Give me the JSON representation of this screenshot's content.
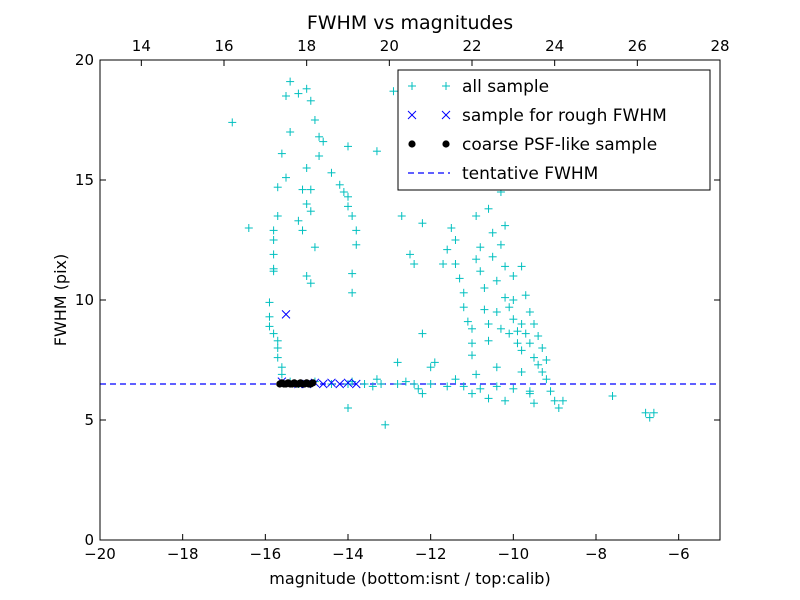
{
  "chart_data": {
    "type": "scatter",
    "title": "FWHM vs magnitudes",
    "xlabel": "magnitude (bottom:isnt / top:calib)",
    "ylabel": "FWHM (pix)",
    "xlim": [
      -20,
      -5
    ],
    "ylim": [
      0,
      20
    ],
    "x_ticks": [
      -20,
      -18,
      -16,
      -14,
      -12,
      -10,
      -8,
      -6
    ],
    "x_tick_labels": [
      "−20",
      "−18",
      "−16",
      "−14",
      "−12",
      "−10",
      "−8",
      "−6"
    ],
    "y_ticks": [
      0,
      5,
      10,
      15,
      20
    ],
    "y_tick_labels": [
      "0",
      "5",
      "10",
      "15",
      "20"
    ],
    "top_axis": {
      "xlim": [
        13,
        28
      ],
      "ticks": [
        14,
        16,
        18,
        20,
        22,
        24,
        26,
        28
      ],
      "tick_labels": [
        "14",
        "16",
        "18",
        "20",
        "22",
        "24",
        "26",
        "28"
      ]
    },
    "grid": false,
    "legend_position": "top-right",
    "legend": [
      {
        "label": "all sample",
        "marker": "plus",
        "color": "#00BFBF"
      },
      {
        "label": "sample for rough FWHM",
        "marker": "x",
        "color": "#0000FF"
      },
      {
        "label": "coarse PSF-like sample",
        "marker": "dot",
        "color": "#000000"
      },
      {
        "label": "tentative FWHM",
        "marker": "dashed-line",
        "color": "#0000FF"
      }
    ],
    "series": [
      {
        "name": "all sample",
        "marker": "plus",
        "color": "#00BFBF",
        "points": [
          [
            -16.8,
            17.4
          ],
          [
            -16.4,
            13.0
          ],
          [
            -15.4,
            19.1
          ],
          [
            -15.5,
            18.5
          ],
          [
            -15.2,
            18.6
          ],
          [
            -15.0,
            18.8
          ],
          [
            -14.9,
            18.3
          ],
          [
            -14.8,
            17.5
          ],
          [
            -14.7,
            16.8
          ],
          [
            -15.4,
            17.0
          ],
          [
            -15.6,
            16.1
          ],
          [
            -15.5,
            15.1
          ],
          [
            -15.7,
            14.7
          ],
          [
            -15.7,
            13.5
          ],
          [
            -15.8,
            12.9
          ],
          [
            -15.8,
            12.5
          ],
          [
            -15.8,
            11.9
          ],
          [
            -15.8,
            11.3
          ],
          [
            -15.8,
            11.2
          ],
          [
            -15.9,
            9.9
          ],
          [
            -15.9,
            9.3
          ],
          [
            -15.9,
            8.9
          ],
          [
            -15.8,
            8.6
          ],
          [
            -15.7,
            8.3
          ],
          [
            -15.7,
            8.0
          ],
          [
            -15.7,
            7.6
          ],
          [
            -15.6,
            7.2
          ],
          [
            -15.6,
            6.9
          ],
          [
            -15.0,
            15.5
          ],
          [
            -15.1,
            14.6
          ],
          [
            -14.9,
            14.6
          ],
          [
            -15.0,
            14.0
          ],
          [
            -14.9,
            13.7
          ],
          [
            -15.2,
            13.3
          ],
          [
            -15.1,
            12.9
          ],
          [
            -14.8,
            12.2
          ],
          [
            -15.0,
            11.0
          ],
          [
            -14.9,
            10.7
          ],
          [
            -14.7,
            16.0
          ],
          [
            -14.6,
            16.6
          ],
          [
            -14.4,
            15.3
          ],
          [
            -14.2,
            14.8
          ],
          [
            -14.0,
            16.4
          ],
          [
            -14.1,
            14.5
          ],
          [
            -14.0,
            14.3
          ],
          [
            -14.0,
            13.9
          ],
          [
            -13.9,
            13.5
          ],
          [
            -13.8,
            12.9
          ],
          [
            -13.8,
            12.3
          ],
          [
            -13.9,
            11.1
          ],
          [
            -13.9,
            10.3
          ],
          [
            -13.3,
            16.2
          ],
          [
            -12.9,
            18.7
          ],
          [
            -12.7,
            13.5
          ],
          [
            -12.5,
            11.9
          ],
          [
            -12.4,
            11.5
          ],
          [
            -12.2,
            13.2
          ],
          [
            -12.2,
            8.6
          ],
          [
            -12.0,
            7.2
          ],
          [
            -11.7,
            11.5
          ],
          [
            -11.6,
            12.1
          ],
          [
            -11.5,
            13.0
          ],
          [
            -11.4,
            12.5
          ],
          [
            -11.4,
            11.5
          ],
          [
            -11.3,
            10.9
          ],
          [
            -11.2,
            10.3
          ],
          [
            -11.2,
            9.7
          ],
          [
            -11.1,
            9.1
          ],
          [
            -11.0,
            8.8
          ],
          [
            -11.0,
            8.2
          ],
          [
            -11.0,
            7.7
          ],
          [
            -10.9,
            13.5
          ],
          [
            -10.9,
            11.7
          ],
          [
            -10.8,
            12.2
          ],
          [
            -10.8,
            11.2
          ],
          [
            -10.7,
            10.5
          ],
          [
            -10.7,
            9.6
          ],
          [
            -10.6,
            9.0
          ],
          [
            -10.6,
            8.3
          ],
          [
            -10.6,
            13.8
          ],
          [
            -10.5,
            12.8
          ],
          [
            -10.5,
            11.8
          ],
          [
            -10.4,
            10.8
          ],
          [
            -10.4,
            9.5
          ],
          [
            -10.3,
            14.5
          ],
          [
            -10.3,
            12.3
          ],
          [
            -10.3,
            8.8
          ],
          [
            -10.2,
            13.1
          ],
          [
            -10.2,
            11.4
          ],
          [
            -10.2,
            10.1
          ],
          [
            -10.1,
            9.7
          ],
          [
            -10.1,
            8.6
          ],
          [
            -10.0,
            11.0
          ],
          [
            -10.0,
            10.0
          ],
          [
            -10.0,
            9.2
          ],
          [
            -9.9,
            8.7
          ],
          [
            -9.9,
            8.2
          ],
          [
            -9.8,
            11.4
          ],
          [
            -9.8,
            9.0
          ],
          [
            -9.8,
            7.9
          ],
          [
            -9.7,
            10.2
          ],
          [
            -9.7,
            8.6
          ],
          [
            -9.6,
            9.5
          ],
          [
            -9.6,
            8.2
          ],
          [
            -9.5,
            9.0
          ],
          [
            -9.5,
            7.6
          ],
          [
            -9.4,
            8.5
          ],
          [
            -9.4,
            7.3
          ],
          [
            -9.3,
            8.0
          ],
          [
            -9.3,
            7.0
          ],
          [
            -9.2,
            7.5
          ],
          [
            -9.2,
            6.7
          ],
          [
            -9.1,
            6.2
          ],
          [
            -9.0,
            5.8
          ],
          [
            -8.9,
            5.5
          ],
          [
            -8.8,
            5.8
          ],
          [
            -7.6,
            6.0
          ],
          [
            -6.8,
            5.3
          ],
          [
            -6.7,
            5.1
          ],
          [
            -6.6,
            5.3
          ],
          [
            -13.1,
            4.8
          ],
          [
            -14.0,
            5.5
          ],
          [
            -11.9,
            7.4
          ],
          [
            -12.8,
            7.4
          ],
          [
            -13.3,
            6.7
          ],
          [
            -12.3,
            6.3
          ],
          [
            -12.2,
            6.1
          ],
          [
            -11.0,
            6.1
          ],
          [
            -10.6,
            5.9
          ],
          [
            -10.2,
            5.8
          ],
          [
            -9.5,
            5.7
          ],
          [
            -9.6,
            6.1
          ],
          [
            -15.4,
            6.6
          ],
          [
            -15.2,
            6.5
          ],
          [
            -14.8,
            6.6
          ],
          [
            -14.4,
            6.5
          ],
          [
            -14.0,
            6.5
          ],
          [
            -13.6,
            6.5
          ],
          [
            -13.2,
            6.5
          ],
          [
            -12.8,
            6.5
          ],
          [
            -12.4,
            6.5
          ],
          [
            -12.0,
            6.5
          ],
          [
            -11.6,
            6.4
          ],
          [
            -11.2,
            6.4
          ],
          [
            -10.8,
            6.3
          ],
          [
            -10.4,
            6.4
          ],
          [
            -10.0,
            6.3
          ],
          [
            -9.6,
            6.2
          ],
          [
            -9.8,
            7.0
          ],
          [
            -10.4,
            7.2
          ],
          [
            -11.4,
            6.7
          ],
          [
            -10.9,
            6.9
          ],
          [
            -13.9,
            6.6
          ],
          [
            -13.4,
            6.4
          ],
          [
            -12.6,
            6.6
          ]
        ]
      },
      {
        "name": "sample for rough FWHM",
        "marker": "x",
        "color": "#0000FF",
        "points": [
          [
            -15.5,
            9.4
          ],
          [
            -15.6,
            6.6
          ],
          [
            -15.2,
            6.5
          ],
          [
            -15.0,
            6.5
          ],
          [
            -14.8,
            6.55
          ],
          [
            -14.6,
            6.5
          ],
          [
            -14.4,
            6.55
          ],
          [
            -14.2,
            6.5
          ],
          [
            -14.0,
            6.55
          ],
          [
            -13.8,
            6.5
          ]
        ]
      },
      {
        "name": "coarse PSF-like sample",
        "marker": "dot",
        "color": "#000000",
        "points": [
          [
            -15.65,
            6.5
          ],
          [
            -15.6,
            6.55
          ],
          [
            -15.55,
            6.5
          ],
          [
            -15.5,
            6.5
          ],
          [
            -15.45,
            6.55
          ],
          [
            -15.4,
            6.5
          ],
          [
            -15.35,
            6.5
          ],
          [
            -15.3,
            6.55
          ],
          [
            -15.25,
            6.5
          ],
          [
            -15.2,
            6.5
          ],
          [
            -15.15,
            6.55
          ],
          [
            -15.1,
            6.5
          ],
          [
            -15.05,
            6.5
          ],
          [
            -15.0,
            6.55
          ],
          [
            -14.95,
            6.5
          ],
          [
            -14.9,
            6.5
          ],
          [
            -14.85,
            6.55
          ]
        ]
      }
    ],
    "reference_line": {
      "name": "tentative FWHM",
      "style": "dashed",
      "color": "#0000FF",
      "y": 6.5
    }
  }
}
